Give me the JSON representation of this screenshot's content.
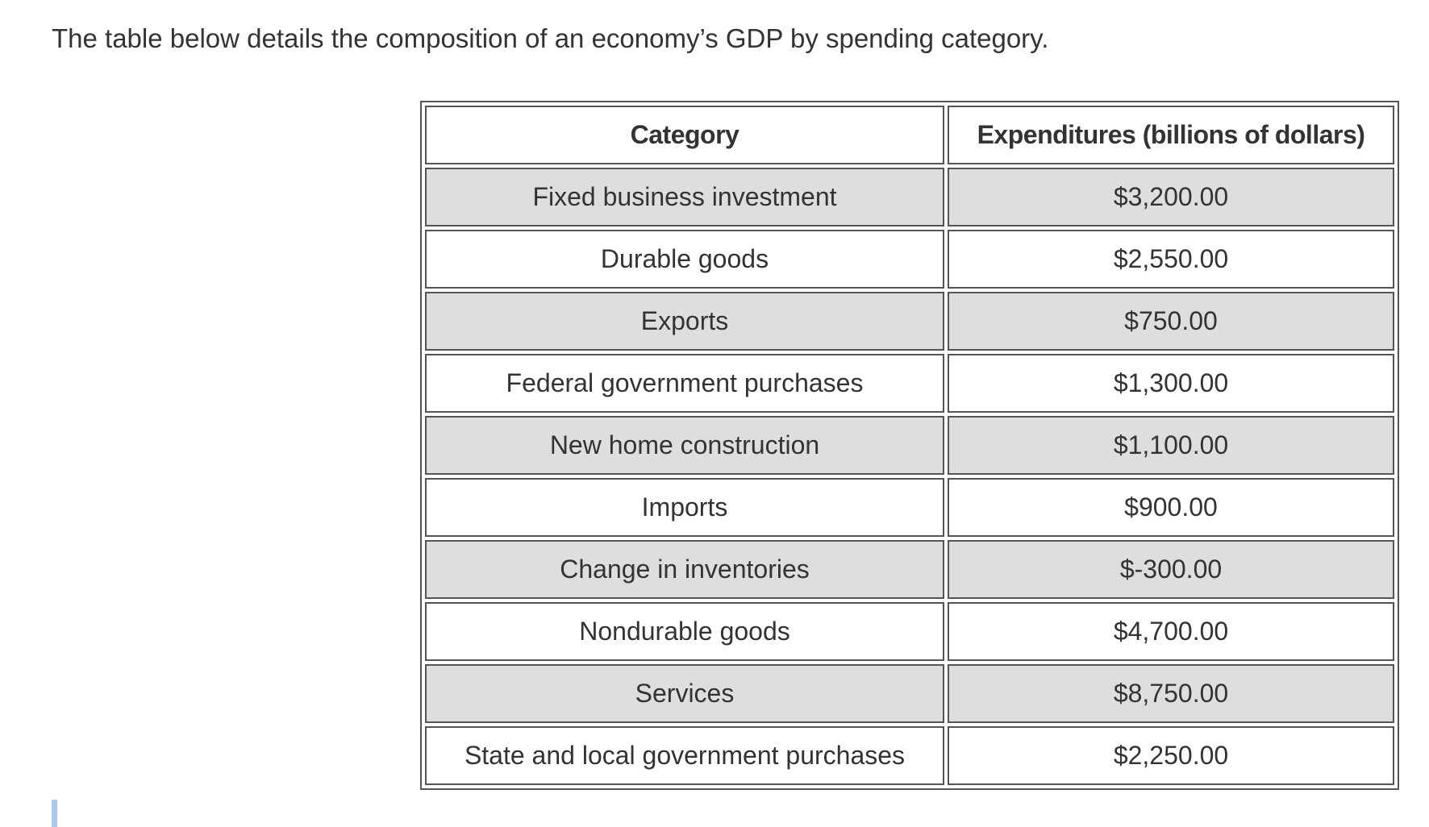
{
  "intro_text": "The table below details the composition of an economy’s GDP by spending category.",
  "table": {
    "headers": {
      "category": "Category",
      "expenditure": "Expenditures (billions of dollars)"
    },
    "rows": [
      {
        "category": "Fixed business investment",
        "expenditure": "$3,200.00"
      },
      {
        "category": "Durable goods",
        "expenditure": "$2,550.00"
      },
      {
        "category": "Exports",
        "expenditure": "$750.00"
      },
      {
        "category": "Federal government purchases",
        "expenditure": "$1,300.00"
      },
      {
        "category": "New home construction",
        "expenditure": "$1,100.00"
      },
      {
        "category": "Imports",
        "expenditure": "$900.00"
      },
      {
        "category": "Change in inventories",
        "expenditure": "$-300.00"
      },
      {
        "category": "Nondurable goods",
        "expenditure": "$4,700.00"
      },
      {
        "category": "Services",
        "expenditure": "$8,750.00"
      },
      {
        "category": "State and local government purchases",
        "expenditure": "$2,250.00"
      }
    ],
    "colors": {
      "shaded_row": "#dedede",
      "plain_row": "#ffffff",
      "border": "#555555"
    }
  }
}
